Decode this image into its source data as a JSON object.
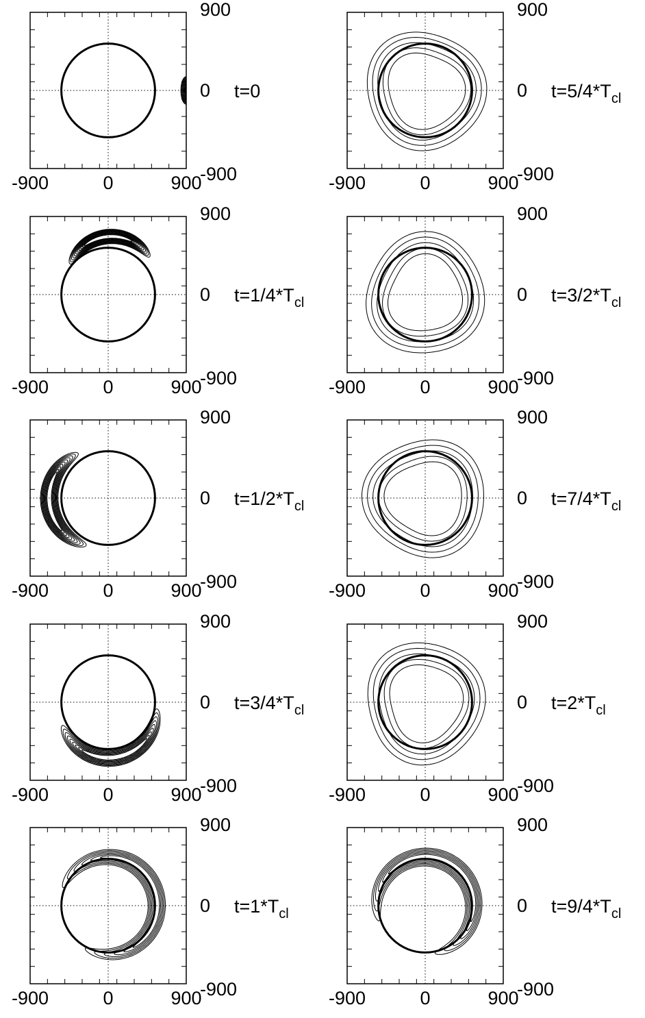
{
  "chart_data": {
    "type": "contour-grid",
    "layout": "5 rows x 2 columns",
    "xlim": [
      -900,
      900
    ],
    "ylim": [
      -900,
      900
    ],
    "x_ticklabels": [
      "-900",
      "0",
      "900"
    ],
    "y_ticklabels": [
      "900",
      "0",
      "-900"
    ],
    "reference_circle": {
      "center": [
        0,
        0
      ],
      "radius": 540,
      "line": "bold"
    },
    "axis_lines": {
      "x": 0,
      "y": 0,
      "style": "dotted"
    },
    "panels": [
      {
        "label": "t=0",
        "sub": "",
        "blob": {
          "cx": 600,
          "cy": 0,
          "radius": 330,
          "width": 200,
          "arc_center_deg": 0,
          "arc_span_deg": 60,
          "levels": 10
        }
      },
      {
        "label": "t=5/4*T",
        "sub": "cl",
        "blob": {
          "cx": 0,
          "cy": 0,
          "radius": 560,
          "width": 230,
          "arc_center_deg": 0,
          "arc_span_deg": 360,
          "levels": 5
        }
      },
      {
        "label": "t=1/4*T",
        "sub": "cl",
        "blob": {
          "cx": 40,
          "cy": 150,
          "radius": 520,
          "width": 180,
          "arc_center_deg": 95,
          "arc_span_deg": 130,
          "levels": 11
        }
      },
      {
        "label": "t=3/2*T",
        "sub": "cl",
        "blob": {
          "cx": 0,
          "cy": 0,
          "radius": 560,
          "width": 240,
          "arc_center_deg": 0,
          "arc_span_deg": 360,
          "levels": 5
        }
      },
      {
        "label": "t=1/2*T",
        "sub": "cl",
        "blob": {
          "cx": -120,
          "cy": 0,
          "radius": 560,
          "width": 220,
          "arc_center_deg": 185,
          "arc_span_deg": 150,
          "levels": 10
        }
      },
      {
        "label": "t=7/4*T",
        "sub": "cl",
        "blob": {
          "cx": 0,
          "cy": 0,
          "radius": 560,
          "width": 240,
          "arc_center_deg": 0,
          "arc_span_deg": 360,
          "levels": 5
        }
      },
      {
        "label": "t=3/4*T",
        "sub": "cl",
        "blob": {
          "cx": 0,
          "cy": -80,
          "radius": 560,
          "width": 220,
          "arc_center_deg": 280,
          "arc_span_deg": 170,
          "levels": 9
        }
      },
      {
        "label": "t=2*T",
        "sub": "cl",
        "blob": {
          "cx": 0,
          "cy": 0,
          "radius": 560,
          "width": 240,
          "arc_center_deg": 0,
          "arc_span_deg": 360,
          "levels": 5
        }
      },
      {
        "label": "t=1*T",
        "sub": "cl",
        "blob": {
          "cx": 0,
          "cy": 0,
          "radius": 560,
          "width": 230,
          "arc_center_deg": 20,
          "arc_span_deg": 300,
          "levels": 6
        }
      },
      {
        "label": "t=9/4*T",
        "sub": "cl",
        "blob": {
          "cx": 0,
          "cy": 0,
          "radius": 560,
          "width": 240,
          "arc_center_deg": 60,
          "arc_span_deg": 300,
          "levels": 6
        }
      }
    ]
  }
}
